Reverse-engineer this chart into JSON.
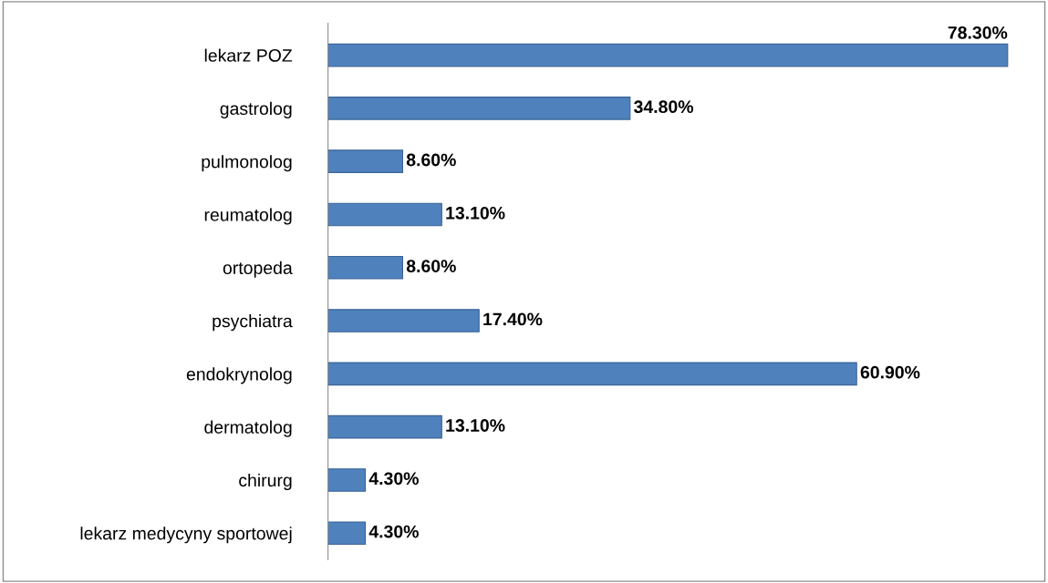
{
  "chart_data": {
    "type": "bar",
    "orientation": "horizontal",
    "categories": [
      "lekarz POZ",
      "gastrolog",
      "pulmonolog",
      "reumatolog",
      "ortopeda",
      "psychiatra",
      "endokrynolog",
      "dermatolog",
      "chirurg",
      "lekarz medycyny sportowej"
    ],
    "values": [
      78.3,
      34.8,
      8.6,
      13.1,
      8.6,
      17.4,
      60.9,
      13.1,
      4.3,
      4.3
    ],
    "value_labels": [
      "78.30%",
      "34.80%",
      "8.60%",
      "13.10%",
      "8.60%",
      "17.40%",
      "60.90%",
      "13.10%",
      "4.30%",
      "4.30%"
    ],
    "color": "#4f81bd",
    "tick_labels": "y",
    "grid": false,
    "legend": false
  }
}
